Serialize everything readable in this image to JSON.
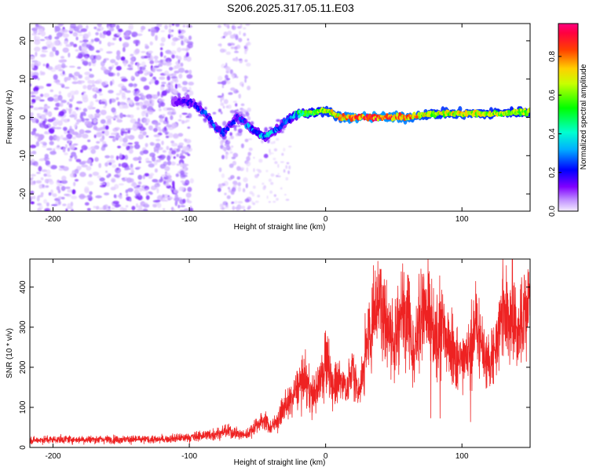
{
  "title": "S206.2025.317.05.11.E03",
  "chart_data": [
    {
      "type": "heatmap",
      "name": "spectrogram",
      "xlabel": "Height of straight line (km)",
      "ylabel": "Frequency (Hz)",
      "xlim": [
        -217,
        150
      ],
      "ylim": [
        -24.5,
        24.5
      ],
      "xticks": [
        -200,
        -100,
        0,
        100
      ],
      "xtick_labels": [
        "-200",
        "-100",
        "0",
        "100"
      ],
      "yticks": [
        -20,
        -10,
        0,
        10,
        20
      ],
      "ytick_labels": [
        "-20",
        "-10",
        "0",
        "10",
        "20"
      ],
      "colorbar": {
        "label": "Normalized spectral amplitude",
        "range": [
          0,
          0.97
        ],
        "ticks": [
          0.0,
          0.2,
          0.4,
          0.6,
          0.8
        ],
        "tick_labels": [
          "0.0",
          "0.2",
          "0.4",
          "0.6",
          "0.8"
        ],
        "colormap": [
          "#f2e6ff",
          "#8000ff",
          "#0000ff",
          "#00ffff",
          "#00ff00",
          "#ffff00",
          "#ff8000",
          "#ff0000",
          "#ff0080"
        ]
      },
      "noise_region_x": [
        -217,
        -58
      ],
      "signal_track": {
        "x": [
          -110,
          -100,
          -95,
          -88,
          -80,
          -75,
          -70,
          -65,
          -60,
          -55,
          -50,
          -45,
          -40,
          -35,
          -30,
          -25,
          -20,
          -10,
          0,
          10,
          20,
          40,
          60,
          80,
          100,
          120,
          150
        ],
        "freq": [
          4,
          4,
          3,
          1,
          -3,
          -4,
          -2,
          0,
          -1,
          -3,
          -4,
          -5,
          -4,
          -3,
          -1,
          0,
          1,
          1,
          2,
          0,
          0,
          0,
          0,
          1,
          1,
          1,
          1.5
        ],
        "amplitude": [
          0.15,
          0.2,
          0.25,
          0.3,
          0.3,
          0.25,
          0.25,
          0.25,
          0.3,
          0.35,
          0.4,
          0.4,
          0.4,
          0.35,
          0.3,
          0.4,
          0.5,
          0.6,
          0.7,
          0.8,
          0.9,
          0.9,
          0.85,
          0.7,
          0.75,
          0.7,
          0.65
        ]
      }
    },
    {
      "type": "line",
      "name": "snr",
      "xlabel": "Height of straight line (km)",
      "ylabel": "SNR (10 * v/v)",
      "xlim": [
        -217,
        150
      ],
      "ylim": [
        0,
        470
      ],
      "xticks": [
        -200,
        -100,
        0,
        100
      ],
      "xtick_labels": [
        "-200",
        "-100",
        "0",
        "100"
      ],
      "yticks": [
        0,
        100,
        200,
        300,
        400
      ],
      "ytick_labels": [
        "0",
        "100",
        "200",
        "300",
        "400"
      ],
      "color": "#ee2222",
      "envelope": {
        "x": [
          -217,
          -200,
          -150,
          -120,
          -100,
          -90,
          -80,
          -70,
          -60,
          -55,
          -50,
          -45,
          -40,
          -35,
          -30,
          -25,
          -20,
          -15,
          -10,
          -5,
          0,
          5,
          10,
          15,
          20,
          25,
          30,
          35,
          40,
          45,
          50,
          55,
          60,
          65,
          70,
          75,
          80,
          85,
          90,
          95,
          100,
          105,
          110,
          115,
          120,
          125,
          130,
          135,
          140,
          145,
          150
        ],
        "y": [
          18,
          20,
          20,
          20,
          25,
          30,
          35,
          40,
          30,
          40,
          60,
          70,
          50,
          70,
          100,
          120,
          150,
          170,
          130,
          150,
          230,
          160,
          180,
          150,
          190,
          140,
          240,
          330,
          380,
          310,
          250,
          320,
          360,
          230,
          340,
          320,
          260,
          300,
          270,
          220,
          210,
          240,
          300,
          250,
          200,
          260,
          330,
          340,
          300,
          320,
          380
        ]
      },
      "notes": "dense noisy trace; values estimated from gridless axes"
    }
  ]
}
